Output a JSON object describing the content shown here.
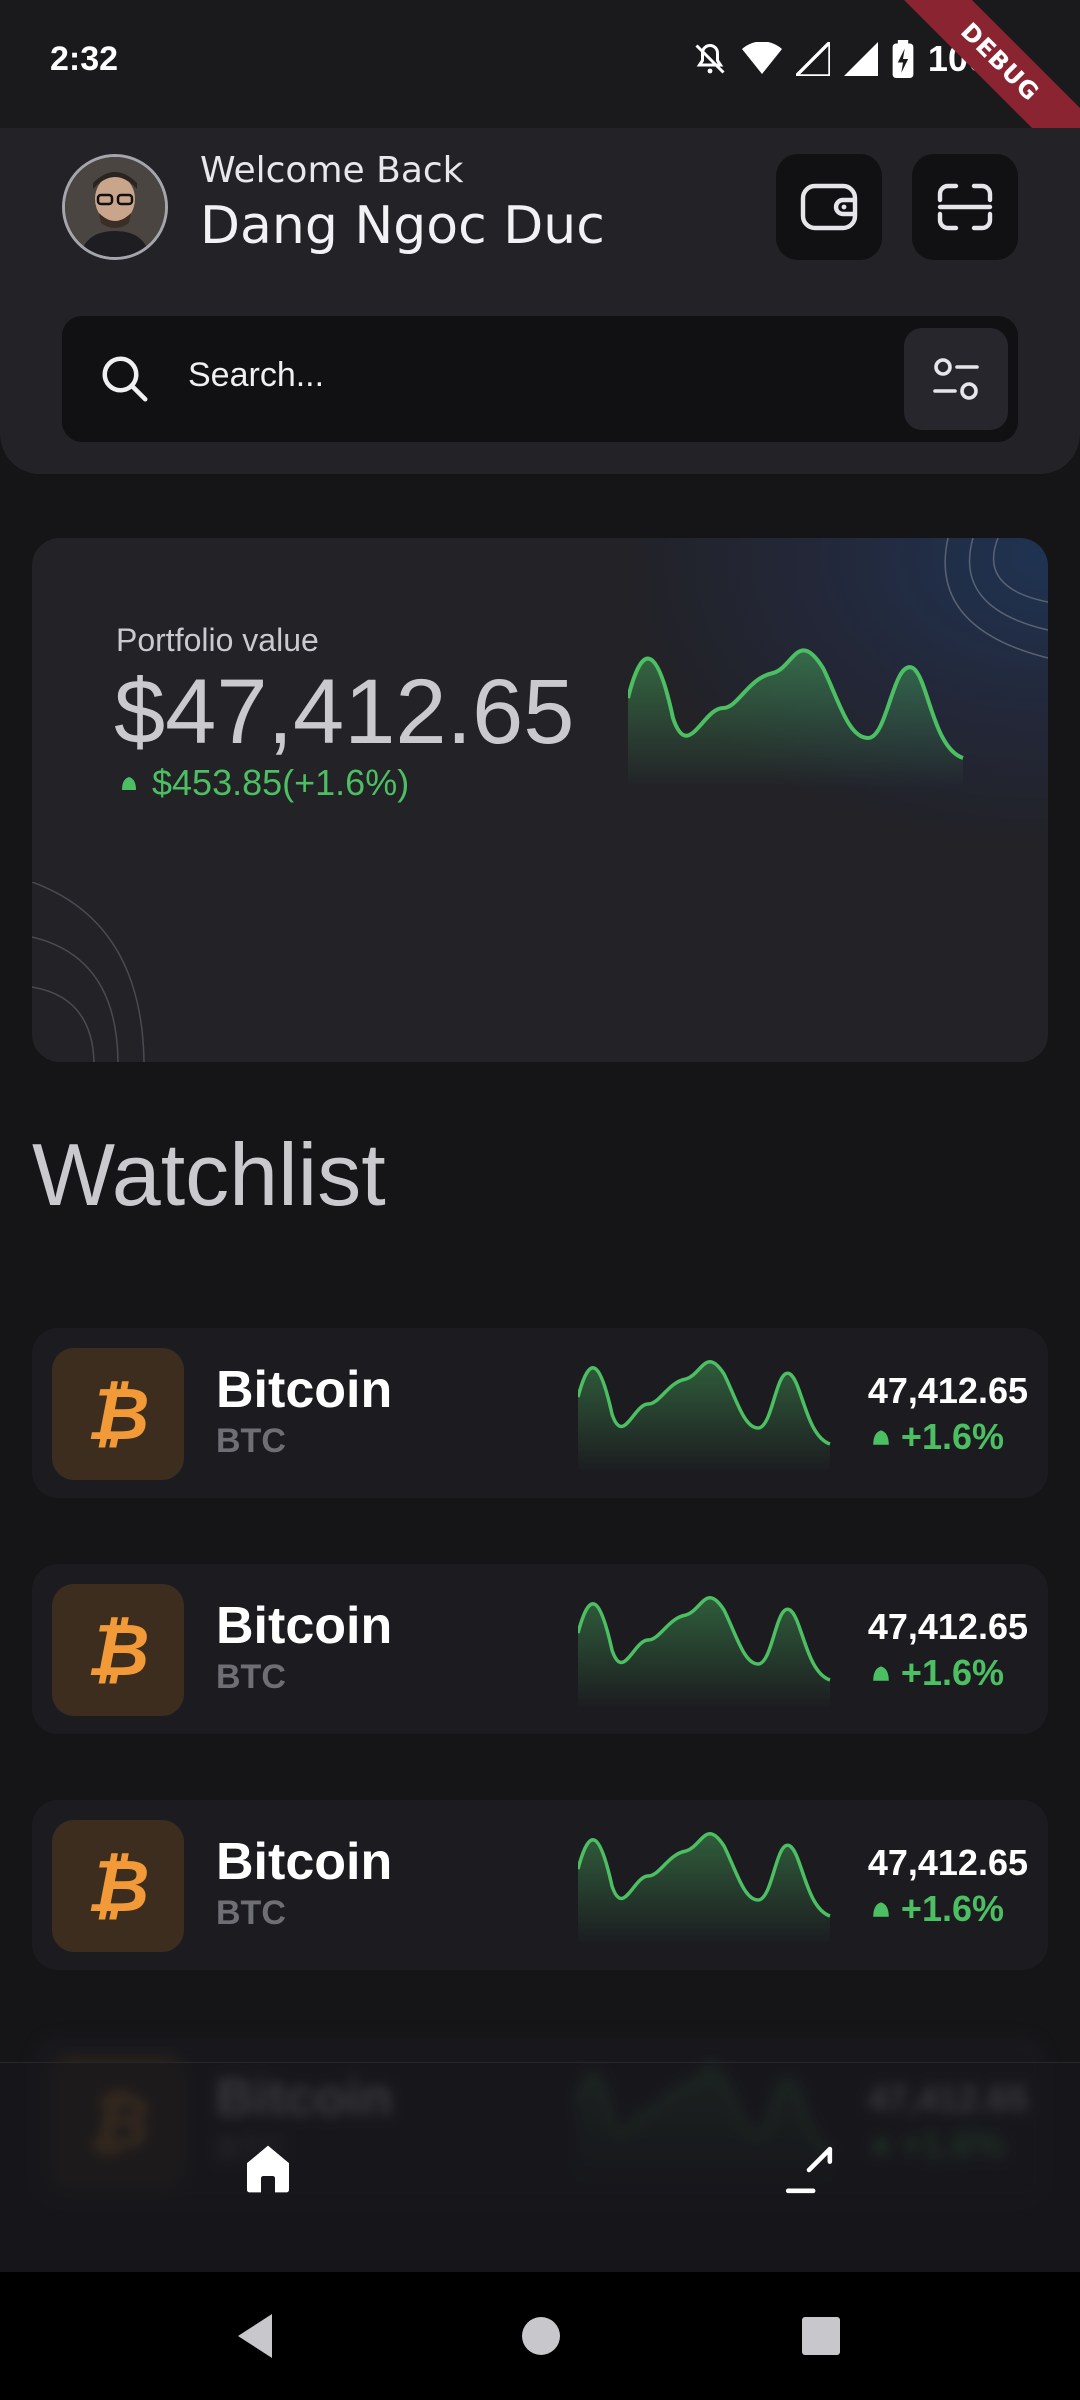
{
  "status_bar": {
    "time": "2:32",
    "battery": "100%",
    "debug_banner": "DEBUG"
  },
  "header": {
    "greeting": "Welcome Back",
    "user_name": "Dang Ngoc Duc",
    "icons": [
      "wallet-icon",
      "scan-icon"
    ]
  },
  "search": {
    "placeholder": "Search...",
    "filter_icon": "filter-icon"
  },
  "portfolio": {
    "label": "Portfolio value",
    "value": "$47,412.65",
    "change": "$453.85(+1.6%)",
    "change_color": "#4cbf63"
  },
  "watchlist": {
    "title": "Watchlist",
    "items": [
      {
        "name": "Bitcoin",
        "symbol": "BTC",
        "price": "47,412.65",
        "change": "+1.6%"
      },
      {
        "name": "Bitcoin",
        "symbol": "BTC",
        "price": "47,412.65",
        "change": "+1.6%"
      },
      {
        "name": "Bitcoin",
        "symbol": "BTC",
        "price": "47,412.65",
        "change": "+1.6%"
      },
      {
        "name": "Bitcoin",
        "symbol": "BTC",
        "price": "47,412.65",
        "change": "+1.6%"
      }
    ]
  },
  "bottom_nav": {
    "items": [
      "home-icon",
      "arrow-down-left-icon"
    ]
  },
  "colors": {
    "accent_green": "#4cbf63",
    "bitcoin_orange": "#f29a37",
    "background": "#151518"
  }
}
